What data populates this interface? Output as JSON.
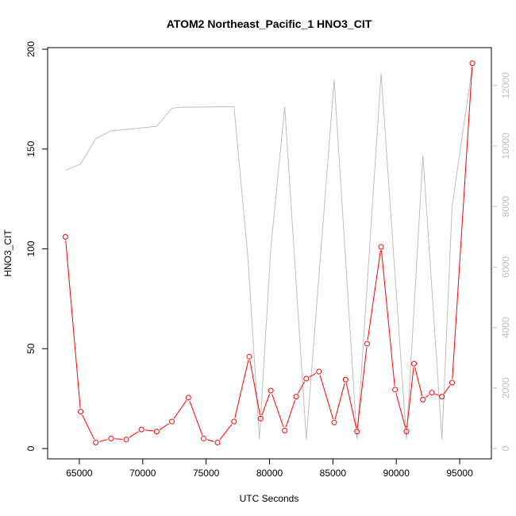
{
  "chart_data": {
    "type": "line",
    "title": "ATOM2 Northeast_Pacific_1 HNO3_CIT",
    "xlabel": "UTC Seconds",
    "ylabel": "HNO3_CIT",
    "xlim": [
      62500,
      97500
    ],
    "ylim": [
      0,
      200
    ],
    "y2lim": [
      0,
      13200
    ],
    "x_ticks": [
      65000,
      70000,
      75000,
      80000,
      85000,
      90000,
      95000
    ],
    "y_ticks": [
      0,
      50,
      100,
      150,
      200
    ],
    "y2_ticks": [
      0,
      2000,
      4000,
      6000,
      8000,
      10000,
      12000
    ],
    "grid": false,
    "series": [
      {
        "axis": "left",
        "color": "#ff0000",
        "markers": "open-circle",
        "x": [
          63900,
          65100,
          66300,
          67500,
          68700,
          69900,
          71100,
          72300,
          73600,
          74800,
          75900,
          77200,
          78400,
          79300,
          80100,
          81200,
          82100,
          82900,
          83900,
          85100,
          86000,
          86900,
          87700,
          88800,
          89900,
          90800,
          91400,
          92100,
          92800,
          93600,
          94400,
          96000
        ],
        "values": [
          106,
          18.5,
          3,
          5,
          4.5,
          9.5,
          8.5,
          13.5,
          25.5,
          5,
          3,
          13.5,
          46,
          15,
          29,
          9,
          26,
          35,
          38.5,
          13,
          34.5,
          8.5,
          52.5,
          101,
          29.5,
          8.5,
          42.5,
          24.5,
          28,
          26,
          33,
          193
        ]
      },
      {
        "axis": "right",
        "color": "#bebebe",
        "markers": "none",
        "x": [
          63900,
          65100,
          66300,
          67500,
          68700,
          69900,
          71100,
          72300,
          73000,
          77200,
          78300,
          79200,
          80100,
          81200,
          82900,
          85100,
          86900,
          88800,
          90800,
          92100,
          93600,
          94400,
          96000
        ],
        "values": [
          9200,
          9400,
          10250,
          10500,
          10550,
          10600,
          10650,
          11250,
          11280,
          11300,
          6300,
          300,
          6600,
          11300,
          300,
          12200,
          300,
          12400,
          300,
          9700,
          300,
          8000,
          12650
        ]
      }
    ]
  }
}
